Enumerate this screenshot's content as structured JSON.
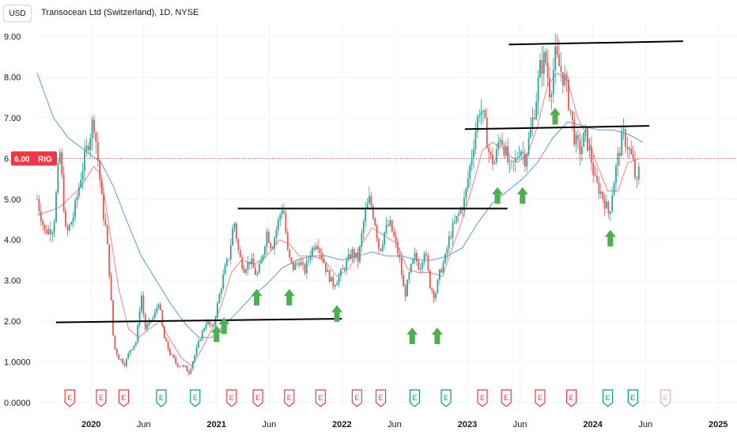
{
  "header": {
    "currency": "USD",
    "title": "Transocean Ltd (Switzerland), 1D, NYSE"
  },
  "price_tag": {
    "value": "6.00",
    "ticker": "RIG"
  },
  "colors": {
    "up": "#26a69a",
    "down": "#ef5350",
    "sma_fast": "#f57f7f",
    "sma_slow": "#5b9bd5",
    "trendline": "#000000",
    "arrow": "#4caf50",
    "earnings_red": "#f23645",
    "earnings_green": "#089981",
    "current_price_line": "#f23645"
  },
  "chart_data": {
    "type": "candlestick",
    "symbol": "RIG",
    "y_ticks": [
      "9.00",
      "8.00",
      "7.00",
      "6.00",
      "5.00",
      "4.00",
      "3.00",
      "2.00",
      "1.0000",
      "0.0000"
    ],
    "x_ticks": [
      {
        "label": "2020",
        "t": 2020.0,
        "bold": true
      },
      {
        "label": "Jun",
        "t": 2020.42,
        "bold": false
      },
      {
        "label": "2021",
        "t": 2021.0,
        "bold": true
      },
      {
        "label": "Jun",
        "t": 2021.42,
        "bold": false
      },
      {
        "label": "2022",
        "t": 2022.0,
        "bold": true
      },
      {
        "label": "Jun",
        "t": 2022.42,
        "bold": false
      },
      {
        "label": "2023",
        "t": 2023.0,
        "bold": true
      },
      {
        "label": "Jun",
        "t": 2023.42,
        "bold": false
      },
      {
        "label": "2024",
        "t": 2024.0,
        "bold": true
      },
      {
        "label": "Jun",
        "t": 2024.42,
        "bold": false
      },
      {
        "label": "2025",
        "t": 2025.0,
        "bold": true
      }
    ],
    "ylim": [
      0,
      9.0
    ],
    "xlim": [
      2019.57,
      2025.15
    ],
    "current_price": 6.0,
    "price_path": [
      [
        2019.57,
        5.0
      ],
      [
        2019.63,
        4.2
      ],
      [
        2019.7,
        4.3
      ],
      [
        2019.75,
        6.2
      ],
      [
        2019.8,
        4.1
      ],
      [
        2019.86,
        4.6
      ],
      [
        2019.92,
        5.6
      ],
      [
        2019.97,
        6.3
      ],
      [
        2020.02,
        7.0
      ],
      [
        2020.06,
        5.8
      ],
      [
        2020.09,
        4.8
      ],
      [
        2020.12,
        4.2
      ],
      [
        2020.15,
        3.0
      ],
      [
        2020.18,
        1.4
      ],
      [
        2020.22,
        1.1
      ],
      [
        2020.27,
        0.95
      ],
      [
        2020.31,
        1.3
      ],
      [
        2020.36,
        1.5
      ],
      [
        2020.4,
        2.7
      ],
      [
        2020.43,
        1.8
      ],
      [
        2020.47,
        2.0
      ],
      [
        2020.5,
        2.1
      ],
      [
        2020.54,
        2.5
      ],
      [
        2020.58,
        1.6
      ],
      [
        2020.63,
        1.2
      ],
      [
        2020.68,
        0.95
      ],
      [
        2020.73,
        0.9
      ],
      [
        2020.78,
        0.75
      ],
      [
        2020.83,
        1.2
      ],
      [
        2020.87,
        1.6
      ],
      [
        2020.92,
        2.0
      ],
      [
        2020.97,
        1.8
      ],
      [
        2021.02,
        2.6
      ],
      [
        2021.06,
        3.2
      ],
      [
        2021.1,
        3.6
      ],
      [
        2021.14,
        4.5
      ],
      [
        2021.18,
        3.6
      ],
      [
        2021.22,
        3.3
      ],
      [
        2021.27,
        3.5
      ],
      [
        2021.32,
        3.1
      ],
      [
        2021.36,
        3.5
      ],
      [
        2021.4,
        4.2
      ],
      [
        2021.44,
        3.8
      ],
      [
        2021.48,
        4.3
      ],
      [
        2021.53,
        4.9
      ],
      [
        2021.57,
        3.6
      ],
      [
        2021.61,
        3.3
      ],
      [
        2021.66,
        3.5
      ],
      [
        2021.7,
        3.2
      ],
      [
        2021.75,
        3.7
      ],
      [
        2021.8,
        4.0
      ],
      [
        2021.84,
        3.6
      ],
      [
        2021.88,
        3.2
      ],
      [
        2021.93,
        2.9
      ],
      [
        2021.98,
        3.1
      ],
      [
        2022.03,
        3.4
      ],
      [
        2022.08,
        3.7
      ],
      [
        2022.13,
        3.5
      ],
      [
        2022.18,
        4.6
      ],
      [
        2022.22,
        5.0
      ],
      [
        2022.26,
        4.5
      ],
      [
        2022.3,
        3.7
      ],
      [
        2022.34,
        4.2
      ],
      [
        2022.38,
        4.4
      ],
      [
        2022.42,
        4.0
      ],
      [
        2022.46,
        3.5
      ],
      [
        2022.5,
        2.6
      ],
      [
        2022.54,
        3.2
      ],
      [
        2022.58,
        3.6
      ],
      [
        2022.62,
        3.3
      ],
      [
        2022.66,
        3.8
      ],
      [
        2022.7,
        2.9
      ],
      [
        2022.74,
        2.6
      ],
      [
        2022.78,
        3.2
      ],
      [
        2022.82,
        3.5
      ],
      [
        2022.86,
        4.1
      ],
      [
        2022.9,
        4.4
      ],
      [
        2022.94,
        4.7
      ],
      [
        2022.98,
        5.0
      ],
      [
        2023.02,
        5.8
      ],
      [
        2023.06,
        6.6
      ],
      [
        2023.1,
        7.3
      ],
      [
        2023.14,
        6.8
      ],
      [
        2023.18,
        6.0
      ],
      [
        2023.22,
        5.9
      ],
      [
        2023.26,
        6.6
      ],
      [
        2023.3,
        6.2
      ],
      [
        2023.34,
        5.7
      ],
      [
        2023.38,
        5.9
      ],
      [
        2023.42,
        6.3
      ],
      [
        2023.46,
        6.0
      ],
      [
        2023.5,
        6.6
      ],
      [
        2023.54,
        7.3
      ],
      [
        2023.58,
        8.2
      ],
      [
        2023.62,
        8.5
      ],
      [
        2023.66,
        7.6
      ],
      [
        2023.7,
        8.5
      ],
      [
        2023.74,
        8.2
      ],
      [
        2023.78,
        7.9
      ],
      [
        2023.82,
        7.2
      ],
      [
        2023.86,
        6.4
      ],
      [
        2023.9,
        6.2
      ],
      [
        2023.94,
        6.6
      ],
      [
        2023.98,
        6.1
      ],
      [
        2024.02,
        5.4
      ],
      [
        2024.06,
        5.2
      ],
      [
        2024.1,
        4.9
      ],
      [
        2024.13,
        4.6
      ],
      [
        2024.16,
        5.3
      ],
      [
        2024.2,
        6.0
      ],
      [
        2024.24,
        6.6
      ],
      [
        2024.28,
        6.3
      ],
      [
        2024.32,
        5.9
      ],
      [
        2024.35,
        5.3
      ],
      [
        2024.38,
        6.0
      ]
    ],
    "sma_fast": [
      [
        2019.57,
        4.6
      ],
      [
        2019.75,
        4.8
      ],
      [
        2019.92,
        5.3
      ],
      [
        2020.02,
        5.8
      ],
      [
        2020.08,
        5.6
      ],
      [
        2020.15,
        4.2
      ],
      [
        2020.22,
        2.8
      ],
      [
        2020.3,
        1.8
      ],
      [
        2020.38,
        1.6
      ],
      [
        2020.46,
        1.8
      ],
      [
        2020.55,
        2.0
      ],
      [
        2020.62,
        1.6
      ],
      [
        2020.72,
        1.1
      ],
      [
        2020.8,
        0.9
      ],
      [
        2020.88,
        1.3
      ],
      [
        2020.96,
        1.8
      ],
      [
        2021.04,
        2.4
      ],
      [
        2021.12,
        3.2
      ],
      [
        2021.2,
        3.5
      ],
      [
        2021.3,
        3.4
      ],
      [
        2021.4,
        3.6
      ],
      [
        2021.5,
        4.0
      ],
      [
        2021.58,
        3.9
      ],
      [
        2021.66,
        3.6
      ],
      [
        2021.76,
        3.6
      ],
      [
        2021.86,
        3.5
      ],
      [
        2021.96,
        3.1
      ],
      [
        2022.06,
        3.3
      ],
      [
        2022.16,
        3.9
      ],
      [
        2022.24,
        4.3
      ],
      [
        2022.34,
        4.1
      ],
      [
        2022.44,
        3.9
      ],
      [
        2022.52,
        3.3
      ],
      [
        2022.6,
        3.2
      ],
      [
        2022.7,
        3.2
      ],
      [
        2022.8,
        3.1
      ],
      [
        2022.88,
        3.8
      ],
      [
        2022.96,
        4.5
      ],
      [
        2023.04,
        5.3
      ],
      [
        2023.12,
        6.2
      ],
      [
        2023.2,
        6.4
      ],
      [
        2023.3,
        6.2
      ],
      [
        2023.4,
        5.9
      ],
      [
        2023.48,
        6.1
      ],
      [
        2023.56,
        6.8
      ],
      [
        2023.64,
        7.8
      ],
      [
        2023.72,
        8.1
      ],
      [
        2023.8,
        7.9
      ],
      [
        2023.88,
        7.0
      ],
      [
        2023.96,
        6.5
      ],
      [
        2024.04,
        5.8
      ],
      [
        2024.12,
        5.2
      ],
      [
        2024.2,
        5.2
      ],
      [
        2024.28,
        5.9
      ],
      [
        2024.38,
        6.0
      ]
    ],
    "sma_slow": [
      [
        2019.57,
        8.1
      ],
      [
        2019.7,
        7.0
      ],
      [
        2019.82,
        6.5
      ],
      [
        2019.95,
        6.2
      ],
      [
        2020.08,
        5.9
      ],
      [
        2020.18,
        5.3
      ],
      [
        2020.28,
        4.5
      ],
      [
        2020.4,
        3.6
      ],
      [
        2020.52,
        3.0
      ],
      [
        2020.64,
        2.4
      ],
      [
        2020.76,
        1.9
      ],
      [
        2020.86,
        1.6
      ],
      [
        2020.96,
        1.6
      ],
      [
        2021.06,
        1.9
      ],
      [
        2021.16,
        2.2
      ],
      [
        2021.28,
        2.6
      ],
      [
        2021.4,
        2.9
      ],
      [
        2021.52,
        3.3
      ],
      [
        2021.64,
        3.5
      ],
      [
        2021.76,
        3.6
      ],
      [
        2021.88,
        3.6
      ],
      [
        2022.0,
        3.5
      ],
      [
        2022.12,
        3.6
      ],
      [
        2022.24,
        3.7
      ],
      [
        2022.36,
        3.6
      ],
      [
        2022.48,
        3.6
      ],
      [
        2022.6,
        3.5
      ],
      [
        2022.72,
        3.5
      ],
      [
        2022.84,
        3.6
      ],
      [
        2022.96,
        3.8
      ],
      [
        2023.08,
        4.4
      ],
      [
        2023.2,
        4.9
      ],
      [
        2023.32,
        5.2
      ],
      [
        2023.44,
        5.5
      ],
      [
        2023.56,
        5.9
      ],
      [
        2023.68,
        6.5
      ],
      [
        2023.8,
        6.9
      ],
      [
        2023.92,
        6.8
      ],
      [
        2024.04,
        6.7
      ],
      [
        2024.16,
        6.7
      ],
      [
        2024.28,
        6.6
      ],
      [
        2024.4,
        6.4
      ]
    ],
    "trendlines": [
      {
        "x1": 2019.72,
        "y1": 1.97,
        "x2": 2022.0,
        "y2": 2.06
      },
      {
        "x1": 2021.17,
        "y1": 4.77,
        "x2": 2023.32,
        "y2": 4.77
      },
      {
        "x1": 2022.98,
        "y1": 6.72,
        "x2": 2024.45,
        "y2": 6.8
      },
      {
        "x1": 2023.33,
        "y1": 8.8,
        "x2": 2024.72,
        "y2": 8.88
      }
    ],
    "arrows": [
      {
        "t": 2021.0,
        "price": 1.7
      },
      {
        "t": 2021.06,
        "price": 1.9
      },
      {
        "t": 2021.32,
        "price": 2.6
      },
      {
        "t": 2021.58,
        "price": 2.6
      },
      {
        "t": 2021.96,
        "price": 2.2
      },
      {
        "t": 2022.56,
        "price": 1.65
      },
      {
        "t": 2022.76,
        "price": 1.65
      },
      {
        "t": 2023.24,
        "price": 5.1
      },
      {
        "t": 2023.44,
        "price": 5.1
      },
      {
        "t": 2023.7,
        "price": 7.05
      },
      {
        "t": 2024.14,
        "price": 4.05
      }
    ],
    "earnings": [
      {
        "t": 2019.83,
        "kind": "red"
      },
      {
        "t": 2020.08,
        "kind": "red"
      },
      {
        "t": 2020.26,
        "kind": "red"
      },
      {
        "t": 2020.56,
        "kind": "green"
      },
      {
        "t": 2020.83,
        "kind": "green"
      },
      {
        "t": 2021.12,
        "kind": "red"
      },
      {
        "t": 2021.33,
        "kind": "red"
      },
      {
        "t": 2021.58,
        "kind": "red"
      },
      {
        "t": 2021.83,
        "kind": "red"
      },
      {
        "t": 2022.12,
        "kind": "red"
      },
      {
        "t": 2022.31,
        "kind": "red"
      },
      {
        "t": 2022.58,
        "kind": "green"
      },
      {
        "t": 2022.83,
        "kind": "green"
      },
      {
        "t": 2023.12,
        "kind": "red"
      },
      {
        "t": 2023.31,
        "kind": "red"
      },
      {
        "t": 2023.58,
        "kind": "red"
      },
      {
        "t": 2023.83,
        "kind": "red"
      },
      {
        "t": 2024.12,
        "kind": "green"
      },
      {
        "t": 2024.32,
        "kind": "green"
      },
      {
        "t": 2024.58,
        "kind": "red_faded"
      }
    ],
    "earnings_letter": "E"
  }
}
